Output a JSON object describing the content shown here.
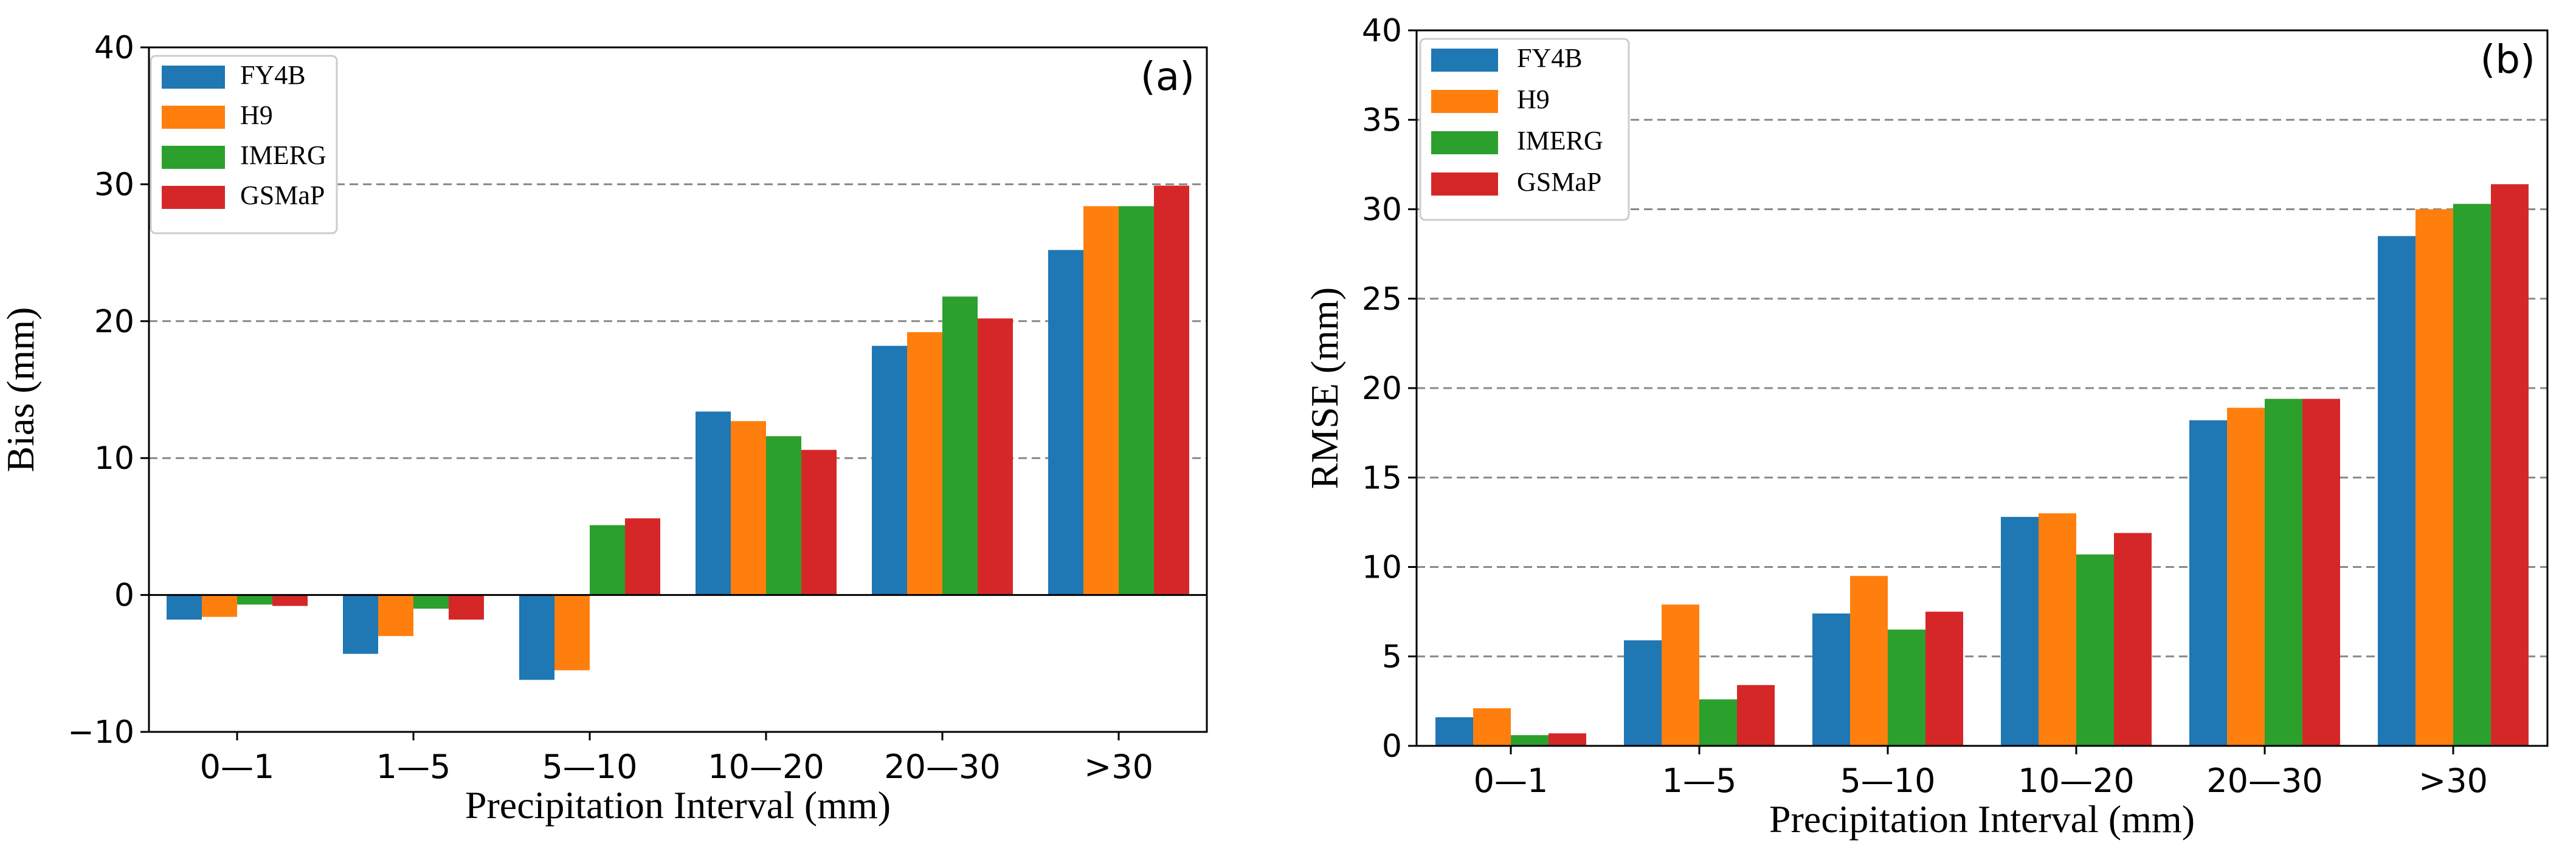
{
  "colors": {
    "FY4B": "#1f77b4",
    "H9": "#ff7f0e",
    "IMERG": "#2ca02c",
    "GSMaP": "#d62728",
    "grid": "#888888",
    "axis": "#000000"
  },
  "chart_data": [
    {
      "type": "bar",
      "panel_label": "(a)",
      "title": "",
      "xlabel": "Precipitation Interval (mm)",
      "ylabel": "Bias (mm)",
      "categories": [
        "0—1",
        "1—5",
        "5—10",
        "10—20",
        "20—30",
        ">30"
      ],
      "ylim": [
        -10,
        40
      ],
      "yticks": [
        -10,
        0,
        10,
        20,
        30,
        40
      ],
      "ytick_labels": [
        "−10",
        "0",
        "10",
        "20",
        "30",
        "40"
      ],
      "grid_lines": [
        10,
        20,
        30
      ],
      "zero_line": true,
      "legend_position": "top-left",
      "series": [
        {
          "name": "FY4B",
          "values": [
            -1.8,
            -4.3,
            -6.2,
            13.4,
            18.2,
            25.2
          ]
        },
        {
          "name": "H9",
          "values": [
            -1.6,
            -3.0,
            -5.5,
            12.7,
            19.2,
            28.4
          ]
        },
        {
          "name": "IMERG",
          "values": [
            -0.7,
            -1.0,
            5.1,
            11.6,
            21.8,
            28.4
          ]
        },
        {
          "name": "GSMaP",
          "values": [
            -0.8,
            -1.8,
            5.6,
            10.6,
            20.2,
            29.9
          ]
        }
      ]
    },
    {
      "type": "bar",
      "panel_label": "(b)",
      "title": "",
      "xlabel": "Precipitation Interval (mm)",
      "ylabel": "RMSE (mm)",
      "categories": [
        "0—1",
        "1—5",
        "5—10",
        "10—20",
        "20—30",
        ">30"
      ],
      "ylim": [
        0,
        40
      ],
      "yticks": [
        0,
        5,
        10,
        15,
        20,
        25,
        30,
        35,
        40
      ],
      "ytick_labels": [
        "0",
        "5",
        "10",
        "15",
        "20",
        "25",
        "30",
        "35",
        "40"
      ],
      "grid_lines": [
        5,
        10,
        15,
        20,
        25,
        30,
        35
      ],
      "zero_line": false,
      "legend_position": "top-left",
      "series": [
        {
          "name": "FY4B",
          "values": [
            1.6,
            5.9,
            7.4,
            12.8,
            18.2,
            28.5
          ]
        },
        {
          "name": "H9",
          "values": [
            2.1,
            7.9,
            9.5,
            13.0,
            18.9,
            30.0
          ]
        },
        {
          "name": "IMERG",
          "values": [
            0.6,
            2.6,
            6.5,
            10.7,
            19.4,
            30.3
          ]
        },
        {
          "name": "GSMaP",
          "values": [
            0.7,
            3.4,
            7.5,
            11.9,
            19.4,
            31.4
          ]
        }
      ]
    }
  ]
}
